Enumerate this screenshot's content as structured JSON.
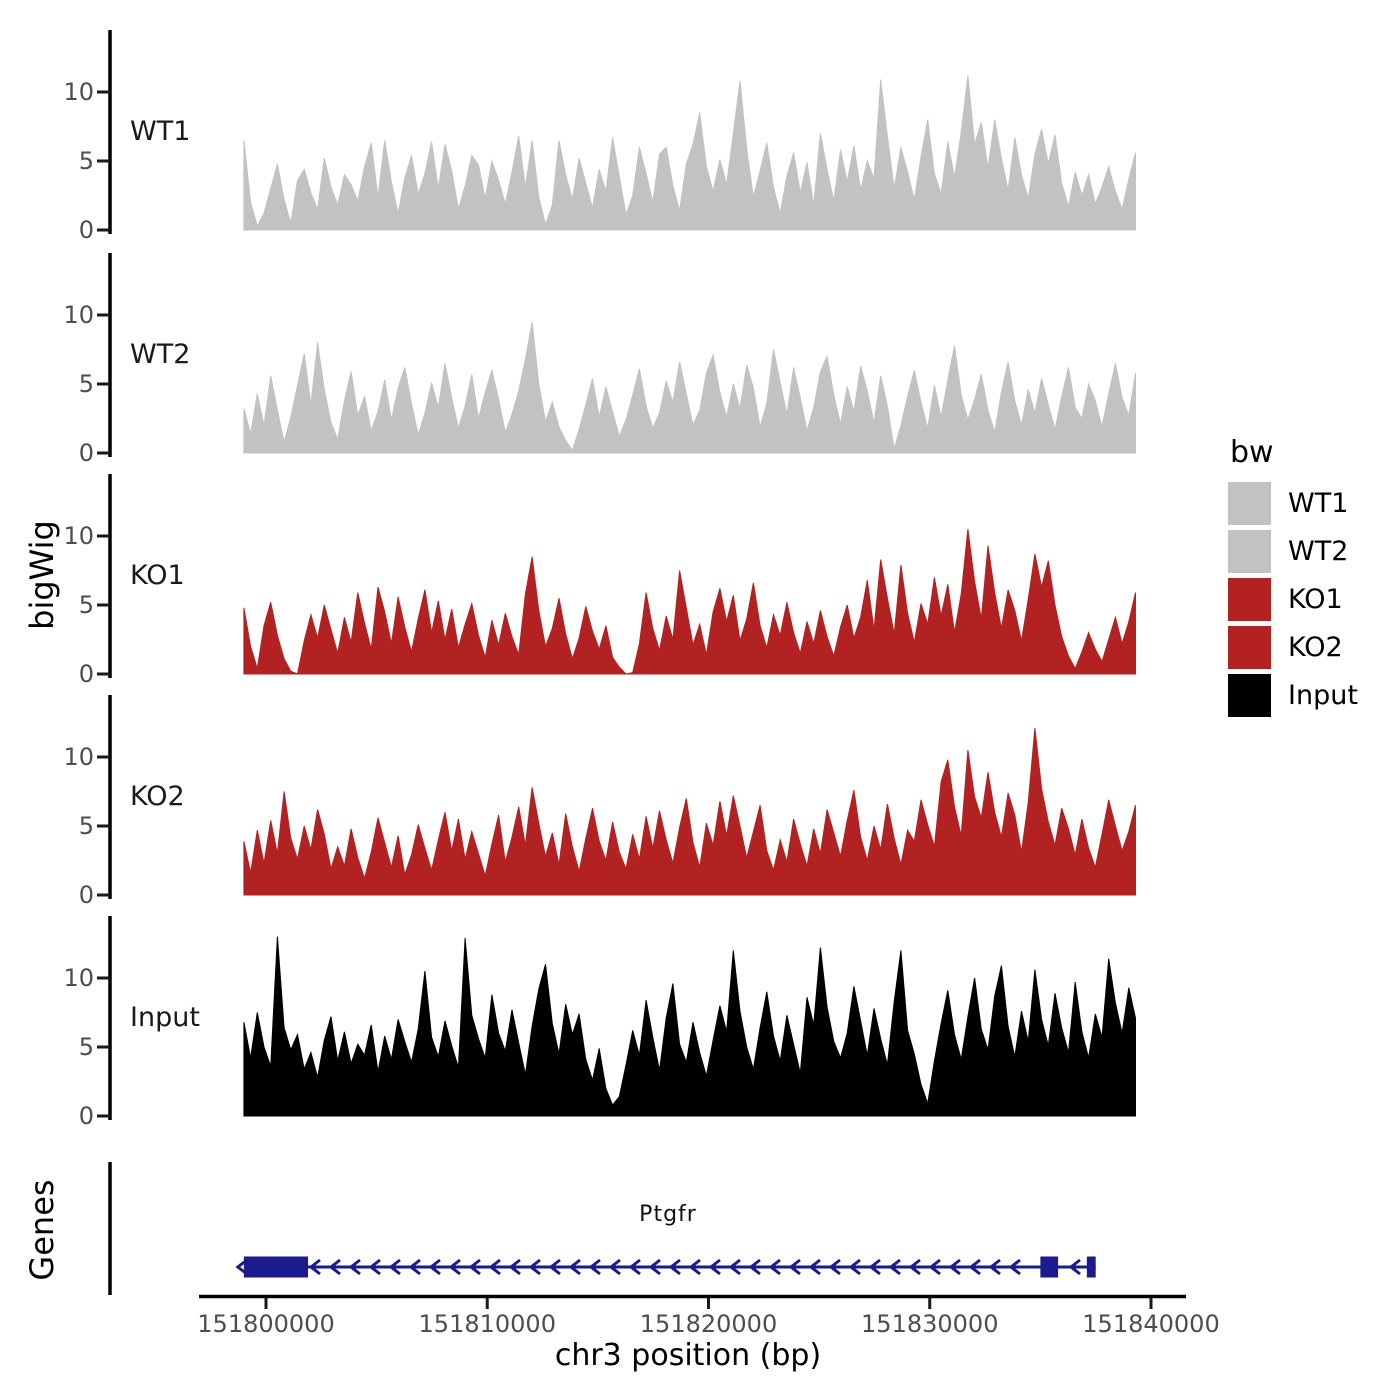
{
  "axes": {
    "y_title_coverage": "bigWig",
    "y_title_genes": "Genes",
    "x_title": "chr3 position (bp)",
    "x_tick_labels": [
      "151800000",
      "151810000",
      "151820000",
      "151830000",
      "151840000"
    ],
    "y_tick_labels": [
      "0",
      "5",
      "10"
    ]
  },
  "legend": {
    "title": "bw",
    "entries": [
      {
        "label": "WT1",
        "color": "#c2c2c2"
      },
      {
        "label": "WT2",
        "color": "#c2c2c2"
      },
      {
        "label": "KO1",
        "color": "#b22222"
      },
      {
        "label": "KO2",
        "color": "#b22222"
      },
      {
        "label": "Input",
        "color": "#000000"
      }
    ]
  },
  "gene_track": {
    "facet_label": "Genes",
    "gene": {
      "name": "Ptgfr",
      "strand": "-",
      "color": "#1b1b8e",
      "start": 151799000,
      "end": 151837500,
      "exons": [
        {
          "start": 151799000,
          "end": 151801900
        },
        {
          "start": 151835000,
          "end": 151835800
        },
        {
          "start": 151837100,
          "end": 151837500
        }
      ]
    }
  },
  "chart_data": {
    "type": "area",
    "title": "",
    "xlabel": "chr3 position (bp)",
    "ylabel": "bigWig",
    "facet_labels": [
      "WT1",
      "WT2",
      "KO1",
      "KO2",
      "Input",
      "Genes"
    ],
    "x_start": 151799000,
    "x_step": 303,
    "x_range": [
      151796900,
      151841800
    ],
    "x_ticks": [
      151800000,
      151810000,
      151820000,
      151830000,
      151840000
    ],
    "ylim": [
      0,
      14.5
    ],
    "yticks": [
      0,
      5,
      10
    ],
    "grid": false,
    "legend_position": "right",
    "series": [
      {
        "name": "WT1",
        "color": "#c2c2c2",
        "values": [
          6.5,
          2.0,
          0.3,
          1.2,
          3.0,
          4.8,
          2.2,
          0.5,
          3.6,
          4.4,
          2.7,
          1.5,
          5.2,
          3.1,
          1.8,
          4.0,
          3.3,
          2.1,
          4.6,
          6.3,
          2.4,
          6.5,
          3.5,
          1.2,
          3.8,
          5.4,
          2.6,
          4.1,
          6.4,
          3.0,
          6.2,
          4.3,
          1.5,
          3.2,
          5.4,
          4.7,
          2.3,
          5.0,
          3.6,
          1.9,
          4.2,
          6.8,
          3.1,
          6.5,
          2.4,
          0.4,
          1.8,
          6.5,
          4.0,
          2.2,
          5.2,
          3.4,
          1.6,
          4.4,
          2.8,
          6.7,
          3.9,
          1.1,
          2.5,
          6.0,
          4.1,
          2.0,
          5.5,
          6.0,
          3.2,
          1.4,
          4.8,
          6.2,
          8.5,
          4.6,
          2.8,
          5.1,
          3.3,
          7.0,
          10.8,
          5.9,
          2.4,
          4.3,
          6.3,
          3.1,
          1.2,
          3.9,
          5.6,
          2.7,
          4.9,
          1.8,
          7.0,
          4.4,
          2.1,
          5.8,
          3.5,
          6.1,
          2.9,
          5.0,
          3.7,
          10.9,
          6.8,
          3.0,
          6.0,
          4.2,
          2.2,
          5.3,
          8.0,
          4.1,
          2.6,
          6.4,
          3.8,
          7.1,
          11.2,
          6.2,
          7.8,
          4.5,
          8.0,
          5.2,
          2.9,
          6.7,
          4.0,
          2.3,
          5.5,
          7.3,
          4.8,
          6.9,
          3.4,
          1.7,
          4.2,
          2.5,
          4.0,
          1.9,
          3.1,
          4.6,
          2.8,
          1.5,
          3.7,
          5.6
        ]
      },
      {
        "name": "WT2",
        "color": "#c2c2c2",
        "values": [
          3.2,
          1.4,
          4.3,
          2.0,
          5.6,
          3.1,
          0.8,
          2.6,
          4.9,
          7.2,
          3.5,
          8.0,
          4.6,
          2.2,
          1.0,
          3.8,
          5.9,
          2.7,
          4.1,
          1.6,
          3.0,
          5.3,
          2.4,
          4.7,
          6.2,
          3.6,
          1.3,
          2.9,
          5.1,
          3.3,
          6.5,
          4.0,
          1.8,
          3.4,
          5.7,
          2.5,
          4.4,
          6.0,
          3.9,
          1.5,
          2.8,
          4.5,
          6.8,
          9.5,
          5.0,
          2.3,
          3.7,
          1.9,
          0.9,
          0.2,
          1.7,
          3.5,
          5.4,
          2.6,
          4.8,
          3.0,
          1.2,
          2.4,
          4.2,
          6.1,
          3.4,
          1.8,
          2.9,
          5.2,
          3.7,
          6.6,
          4.3,
          2.0,
          3.1,
          5.8,
          7.1,
          4.4,
          2.6,
          5.0,
          3.2,
          6.4,
          4.7,
          1.9,
          3.6,
          7.5,
          5.1,
          2.8,
          6.2,
          4.0,
          1.6,
          3.3,
          5.9,
          7.0,
          4.2,
          2.1,
          4.8,
          3.0,
          6.3,
          4.5,
          2.2,
          5.6,
          3.4,
          0.3,
          2.0,
          4.1,
          6.0,
          3.7,
          1.8,
          4.9,
          2.6,
          5.3,
          7.8,
          4.2,
          2.4,
          3.9,
          5.7,
          3.1,
          1.5,
          4.4,
          6.6,
          3.8,
          2.0,
          4.6,
          2.9,
          5.4,
          3.5,
          1.7,
          4.1,
          6.2,
          3.3,
          2.5,
          5.0,
          3.8,
          1.9,
          4.3,
          6.5,
          4.0,
          2.7,
          5.8
        ]
      },
      {
        "name": "KO1",
        "color": "#b22222",
        "values": [
          4.8,
          2.0,
          0.4,
          3.5,
          5.2,
          2.8,
          1.1,
          0.2,
          0.0,
          2.4,
          4.3,
          2.6,
          5.0,
          3.2,
          1.5,
          4.1,
          2.3,
          5.9,
          3.7,
          1.8,
          6.3,
          4.5,
          2.2,
          5.6,
          3.4,
          1.6,
          4.0,
          6.1,
          3.0,
          5.3,
          2.5,
          4.7,
          1.9,
          3.6,
          5.1,
          2.8,
          1.2,
          3.9,
          2.1,
          4.4,
          2.7,
          1.4,
          5.8,
          8.5,
          4.6,
          2.0,
          3.3,
          5.5,
          2.9,
          1.1,
          2.6,
          4.9,
          3.1,
          1.8,
          3.5,
          1.2,
          0.5,
          0.0,
          0.1,
          2.2,
          5.9,
          3.3,
          1.7,
          4.2,
          2.5,
          7.5,
          4.8,
          2.1,
          3.6,
          1.4,
          4.5,
          6.2,
          3.8,
          5.7,
          2.4,
          4.0,
          6.6,
          3.5,
          1.9,
          4.3,
          2.8,
          5.2,
          3.0,
          1.5,
          3.8,
          2.2,
          4.6,
          2.7,
          1.3,
          3.4,
          5.0,
          2.6,
          4.1,
          6.8,
          3.2,
          8.3,
          5.5,
          2.9,
          7.9,
          4.4,
          2.3,
          5.1,
          3.6,
          7.0,
          4.2,
          6.5,
          3.0,
          5.8,
          10.5,
          6.7,
          4.0,
          9.3,
          5.9,
          3.3,
          6.1,
          4.6,
          2.4,
          5.4,
          8.7,
          6.3,
          8.2,
          5.0,
          2.7,
          1.3,
          0.4,
          1.6,
          3.0,
          1.8,
          0.9,
          2.5,
          4.1,
          2.2,
          3.8,
          5.9
        ]
      },
      {
        "name": "KO2",
        "color": "#b22222",
        "values": [
          3.9,
          1.6,
          4.7,
          2.3,
          5.4,
          3.0,
          7.5,
          4.1,
          2.6,
          5.0,
          3.3,
          6.2,
          4.4,
          1.9,
          3.5,
          2.1,
          4.8,
          2.7,
          1.2,
          3.1,
          5.6,
          3.8,
          2.0,
          4.3,
          1.5,
          2.9,
          5.1,
          3.4,
          1.8,
          4.0,
          6.0,
          3.2,
          5.5,
          2.6,
          4.6,
          3.0,
          1.4,
          3.7,
          5.8,
          2.4,
          4.2,
          6.4,
          3.6,
          7.8,
          5.2,
          2.8,
          4.5,
          2.2,
          5.9,
          3.5,
          1.7,
          4.1,
          6.3,
          3.9,
          2.5,
          5.3,
          3.1,
          1.9,
          4.4,
          2.6,
          5.7,
          3.4,
          6.1,
          4.0,
          2.3,
          4.9,
          7.0,
          3.8,
          2.0,
          5.2,
          3.6,
          6.8,
          4.3,
          7.2,
          5.0,
          2.7,
          4.6,
          6.5,
          3.2,
          1.8,
          4.0,
          2.4,
          5.5,
          3.7,
          2.1,
          4.8,
          3.0,
          6.2,
          4.5,
          2.8,
          5.4,
          7.6,
          4.2,
          2.5,
          5.0,
          3.3,
          6.6,
          4.1,
          2.2,
          4.7,
          3.9,
          6.9,
          5.1,
          3.5,
          8.2,
          9.8,
          6.4,
          4.3,
          10.5,
          7.1,
          5.6,
          8.9,
          6.0,
          4.2,
          7.4,
          5.8,
          3.1,
          6.7,
          12.1,
          7.7,
          5.3,
          3.6,
          6.3,
          4.8,
          2.9,
          5.5,
          3.4,
          2.0,
          4.4,
          6.9,
          5.0,
          3.2,
          4.6,
          6.5
        ]
      },
      {
        "name": "Input",
        "color": "#000000",
        "values": [
          6.8,
          4.2,
          7.5,
          5.0,
          3.6,
          13.0,
          6.4,
          4.8,
          5.9,
          3.4,
          4.6,
          2.8,
          5.5,
          7.2,
          4.0,
          6.1,
          3.8,
          5.2,
          4.4,
          6.6,
          3.2,
          5.8,
          4.1,
          7.0,
          5.4,
          3.9,
          6.3,
          10.5,
          5.7,
          4.3,
          6.9,
          5.1,
          3.5,
          12.9,
          7.3,
          5.6,
          4.2,
          8.8,
          6.0,
          4.7,
          7.7,
          5.3,
          3.0,
          6.5,
          9.2,
          11.0,
          6.7,
          4.5,
          8.1,
          5.9,
          7.4,
          4.1,
          2.6,
          4.9,
          2.0,
          0.8,
          1.4,
          3.7,
          6.2,
          4.4,
          8.4,
          5.7,
          3.3,
          7.1,
          9.6,
          5.2,
          3.9,
          6.8,
          4.6,
          2.9,
          5.5,
          8.0,
          6.1,
          12.0,
          7.6,
          5.0,
          3.4,
          6.4,
          9.0,
          5.8,
          4.0,
          7.3,
          5.2,
          3.1,
          8.6,
          6.6,
          12.2,
          7.9,
          5.4,
          4.2,
          6.0,
          9.4,
          6.9,
          4.4,
          7.8,
          5.6,
          3.7,
          8.3,
          12.0,
          6.2,
          4.5,
          2.3,
          0.9,
          4.0,
          6.7,
          9.1,
          5.9,
          4.1,
          7.2,
          10.0,
          6.3,
          4.8,
          8.7,
          10.9,
          6.5,
          4.3,
          7.6,
          5.4,
          10.6,
          7.0,
          5.1,
          8.9,
          6.4,
          4.6,
          9.7,
          6.1,
          4.2,
          7.4,
          5.7,
          11.4,
          8.2,
          6.0,
          9.3,
          7.1
        ]
      }
    ]
  }
}
